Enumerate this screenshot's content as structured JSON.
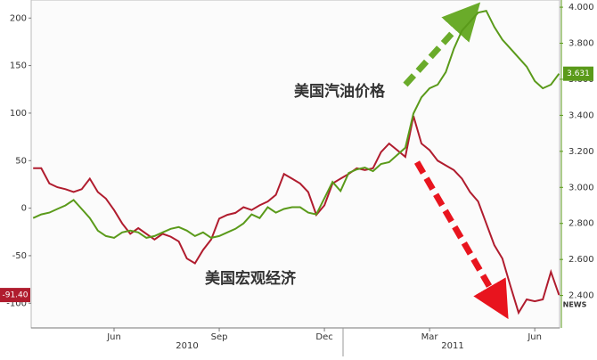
{
  "chart_data": {
    "type": "line",
    "categories": [
      null,
      null,
      null,
      null,
      null,
      null,
      null,
      null,
      null,
      null,
      "Jun",
      null,
      null,
      null,
      null,
      null,
      null,
      null,
      null,
      null,
      null,
      null,
      null,
      "Sep",
      null,
      null,
      null,
      null,
      null,
      null,
      null,
      null,
      null,
      null,
      null,
      null,
      "Dec",
      null,
      null,
      null,
      null,
      null,
      null,
      null,
      null,
      null,
      null,
      null,
      null,
      "Mar",
      null,
      null,
      null,
      null,
      null,
      null,
      null,
      null,
      null,
      null,
      null,
      null,
      "Jun",
      null,
      null,
      null
    ],
    "years": [
      "2010",
      "2011"
    ],
    "ylim": [
      -126,
      219
    ],
    "yticks": [
      -100,
      -50,
      0,
      50,
      100,
      150,
      200
    ],
    "y2lim": [
      2.22,
      4.04
    ],
    "y2ticks": [
      {
        "value": 2.4,
        "label": "2.400"
      },
      {
        "value": 2.6,
        "label": "2.600"
      },
      {
        "value": 2.8,
        "label": "2.800"
      },
      {
        "value": 3.0,
        "label": "3.000"
      },
      {
        "value": 3.2,
        "label": "3.200"
      },
      {
        "value": 3.4,
        "label": "3.400"
      },
      {
        "value": 3.6,
        "label": "3.600"
      },
      {
        "value": 3.8,
        "label": "3.800"
      },
      {
        "value": 4.0,
        "label": "4.000"
      }
    ],
    "series": [
      {
        "name": "美国宏观经济",
        "color": "#b01c2e",
        "end_label": "-91.40",
        "values": [
          42,
          42,
          26,
          22,
          20,
          17,
          20,
          31,
          17,
          10,
          -2,
          -16,
          -27,
          -21,
          -27,
          -33,
          -27,
          -30,
          -35,
          -53,
          -58,
          -44,
          -33,
          -11,
          -7,
          -5,
          1,
          -2,
          3,
          7,
          14,
          36,
          31,
          26,
          17,
          -7,
          3,
          26,
          31,
          36,
          42,
          40,
          42,
          59,
          68,
          61,
          54,
          97,
          68,
          61,
          50,
          45,
          40,
          31,
          17,
          7,
          -16,
          -39,
          -53,
          -82,
          -110,
          -96,
          -98,
          -96,
          -67,
          -91.4
        ]
      },
      {
        "name": "美国汽油价格",
        "color": "#5a9a1a",
        "axis": "y2",
        "end_label": "3.631",
        "values": [
          2.83,
          2.85,
          2.86,
          2.88,
          2.9,
          2.93,
          2.88,
          2.83,
          2.76,
          2.73,
          2.72,
          2.75,
          2.76,
          2.75,
          2.72,
          2.73,
          2.75,
          2.77,
          2.78,
          2.76,
          2.73,
          2.75,
          2.72,
          2.73,
          2.75,
          2.77,
          2.8,
          2.85,
          2.83,
          2.89,
          2.86,
          2.88,
          2.89,
          2.89,
          2.86,
          2.85,
          2.94,
          3.03,
          2.98,
          3.08,
          3.1,
          3.11,
          3.09,
          3.13,
          3.14,
          3.18,
          3.22,
          3.41,
          3.5,
          3.55,
          3.57,
          3.64,
          3.77,
          3.87,
          3.92,
          3.97,
          3.98,
          3.89,
          3.82,
          3.77,
          3.72,
          3.67,
          3.59,
          3.55,
          3.57,
          3.631
        ]
      }
    ],
    "watermark": "NEWS"
  }
}
